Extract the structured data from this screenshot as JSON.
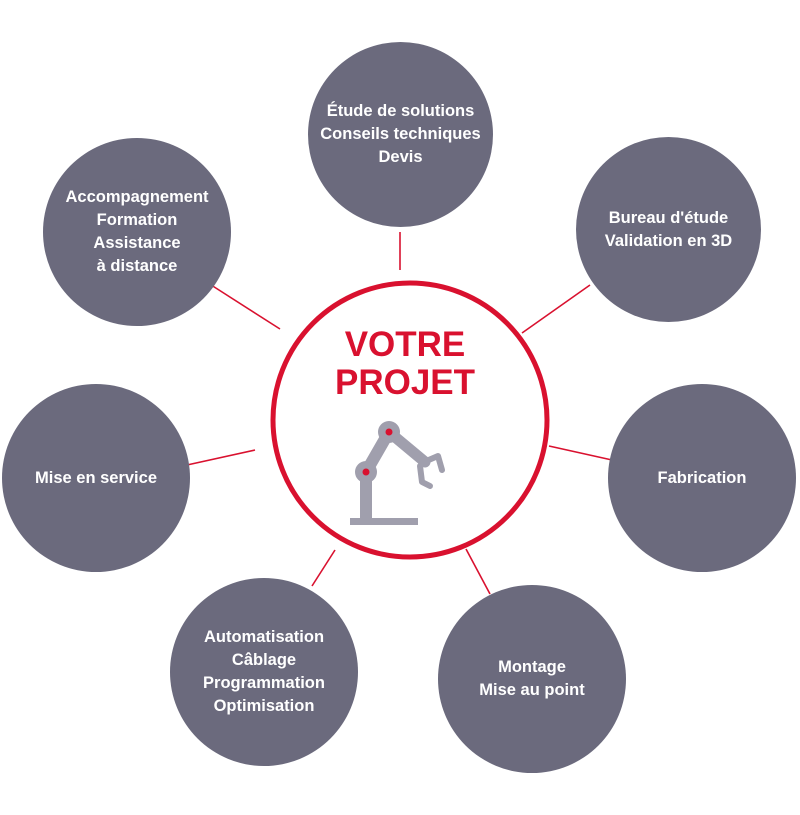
{
  "center": {
    "title_lines": [
      "VOTRE",
      "PROJET"
    ],
    "icon": "robot-arm-icon"
  },
  "colors": {
    "accent": "#d9112f",
    "node_fill": "#6b6a7d",
    "robot_fill": "#a09fad"
  },
  "nodes": [
    {
      "id": "etude",
      "lines": [
        "Étude de solutions",
        "Conseils techniques",
        "Devis"
      ]
    },
    {
      "id": "bureau",
      "lines": [
        "Bureau d'étude",
        "Validation en 3D"
      ]
    },
    {
      "id": "fabrication",
      "lines": [
        "Fabrication"
      ]
    },
    {
      "id": "montage",
      "lines": [
        "Montage",
        "Mise au point"
      ]
    },
    {
      "id": "automatisation",
      "lines": [
        "Automatisation",
        "Câblage",
        "Programmation",
        "Optimisation"
      ]
    },
    {
      "id": "mise-en-service",
      "lines": [
        "Mise en service"
      ]
    },
    {
      "id": "accompagnement",
      "lines": [
        "Accompagnement",
        "Formation",
        "Assistance",
        "à distance"
      ]
    }
  ]
}
